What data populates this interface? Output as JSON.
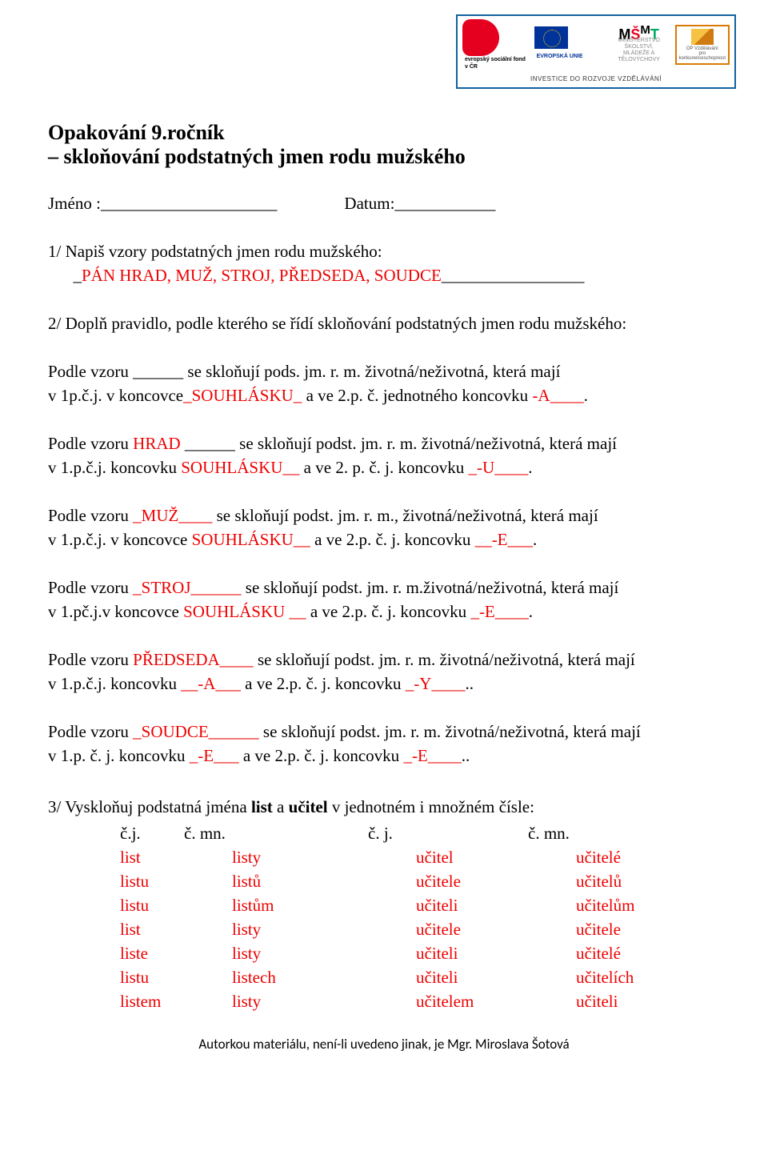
{
  "banner": {
    "esf_text": "evropský\nsociální\nfond v ČR",
    "eu_text": "EVROPSKÁ UNIE",
    "msmt_line1": "MINISTERSTVO ŠKOLSTVÍ,",
    "msmt_line2": "MLÁDEŽE A TĚLOVÝCHOVY",
    "op_line1": "OP Vzdělávání",
    "op_line2": "pro konkurenceschopnost",
    "caption": "INVESTICE DO ROZVOJE VZDĚLÁVÁNÍ"
  },
  "title": "Opakování  9.ročník",
  "subtitle": "–  skloňování podstatných jmen rodu mužského",
  "name_label": "Jméno :_____________________",
  "date_label": "Datum:____________",
  "task1": {
    "prompt": "1/    Napiš vzory podstatných jmen rodu mužského:",
    "answer_prefix": "_",
    "answer": "PÁN HRAD, MUŽ, STROJ, PŘEDSEDA, SOUDCE",
    "answer_suffix": "_________________"
  },
  "task2": {
    "prompt": "2/   Doplň pravidlo, podle kterého se řídí skloňování podstatných jmen rodu mužského:",
    "rules": [
      {
        "pre": "     Podle vzoru ______ se skloňují pods. jm. r. m. životná/neživotná, která mají",
        "line2_a": "v 1p.č.j. v koncovce",
        "red1": "_SOUHLÁSKU_",
        "line2_b": " a ve 2.p. č. jednotného koncovku  ",
        "red2": "-A____",
        "line2_c": "."
      },
      {
        "pre_a": "     Podle vzoru  ",
        "pattern": "HRAD",
        "pre_b": " ______ se skloňují podst. jm. r. m. životná/neživotná, která mají",
        "line2_a": "v 1.p.č.j. koncovku ",
        "red1": "SOUHLÁSKU__",
        "line2_b": " a ve 2. p. č. j. koncovku  ",
        "red2": "_-U____",
        "line2_c": "."
      },
      {
        "pre_a": "     Podle vzoru  ",
        "pattern": "_MUŽ____",
        "pre_b": " se skloňují podst. jm. r. m., životná/neživotná, která mají",
        "line2_a": "v 1.p.č.j. v koncovce ",
        "red1": "SOUHLÁSKU__",
        "line2_b": " a ve 2.p. č. j. koncovku ",
        "red2": "__-E___",
        "line2_c": "."
      },
      {
        "pre_a": "     Podle vzoru ",
        "pattern": "_STROJ______",
        "pre_b": " se skloňují podst. jm. r. m.životná/neživotná, která mají",
        "line2_a": "v 1.pč.j.v koncovce ",
        "red1": "SOUHLÁSKU __",
        "line2_b": " a ve 2.p. č. j. koncovku  ",
        "red2": "_-E____",
        "line2_c": "."
      },
      {
        "pre_a": "     Podle vzoru ",
        "pattern": "PŘEDSEDA____",
        "pre_b": " se skloňují podst. jm. r. m. životná/neživotná, která mají",
        "line2_a": "v 1.p.č.j. koncovku ",
        "red1": "__-A___",
        "line2_b": " a ve 2.p. č. j. koncovku  ",
        "red2": "_-Y____",
        "line2_c": ".."
      },
      {
        "pre_a": "     Podle vzoru ",
        "pattern": "_SOUDCE______",
        "pre_b": " se skloňují podst. jm. r. m. životná/neživotná, která mají",
        "line2_a": "v 1.p. č. j. koncovku  ",
        "red1": "_-E___",
        "line2_b": " a ve 2.p. č. j. koncovku  ",
        "red2": "_-E____",
        "line2_c": ".."
      }
    ]
  },
  "task3": {
    "prompt_a": "3/   Vyskloňuj podstatná jména  ",
    "word1": "list",
    "prompt_b": " a  ",
    "word2": "učitel",
    "prompt_c": " v jednotném i množném čísle:",
    "headers": [
      "č.j.",
      "č. mn.",
      "č. j.",
      "č. mn."
    ],
    "rows": [
      [
        "list",
        "listy",
        "učitel",
        "učitelé"
      ],
      [
        "listu",
        "listů",
        "učitele",
        "učitelů"
      ],
      [
        "listu",
        "listům",
        "učiteli",
        "učitelům"
      ],
      [
        "list",
        "listy",
        "učitele",
        "učitele"
      ],
      [
        "liste",
        "listy",
        "učiteli",
        "učitelé"
      ],
      [
        "listu",
        "listech",
        "učiteli",
        "učitelích"
      ],
      [
        "listem",
        "listy",
        "učitelem",
        "učiteli"
      ]
    ]
  },
  "footer": "Autorkou materiálu, není-li uvedeno jinak, je Mgr. Miroslava Šotová"
}
